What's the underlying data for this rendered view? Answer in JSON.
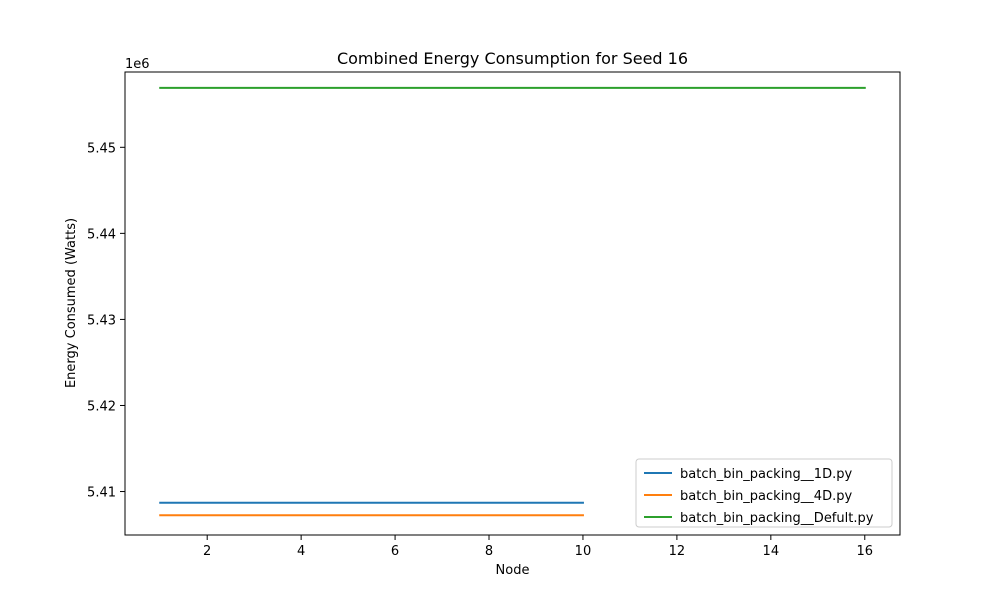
{
  "chart_data": {
    "type": "line",
    "title": "Combined Energy Consumption for Seed 16",
    "xlabel": "Node",
    "ylabel": "Energy Consumed (Watts)",
    "y_offset_label": "1e6",
    "y_scale": 1000000,
    "xlim": [
      0.25,
      16.75
    ],
    "ylim": [
      5404950,
      5458750
    ],
    "xticks": [
      2,
      4,
      6,
      8,
      10,
      12,
      14,
      16
    ],
    "yticks": [
      5410000,
      5420000,
      5430000,
      5440000,
      5450000
    ],
    "ytick_labels": [
      "5.41",
      "5.42",
      "5.43",
      "5.44",
      "5.45"
    ],
    "grid": false,
    "legend_position": "lower right",
    "series": [
      {
        "name": "batch_bin_packing__1D.py",
        "color": "#1f77b4",
        "x": [
          1,
          2,
          3,
          4,
          5,
          6,
          7,
          8,
          9,
          10
        ],
        "y": [
          5408700,
          5408700,
          5408700,
          5408700,
          5408700,
          5408700,
          5408700,
          5408700,
          5408700,
          5408700
        ]
      },
      {
        "name": "batch_bin_packing__4D.py",
        "color": "#ff7f0e",
        "x": [
          1,
          2,
          3,
          4,
          5,
          6,
          7,
          8,
          9,
          10
        ],
        "y": [
          5407250,
          5407250,
          5407250,
          5407250,
          5407250,
          5407250,
          5407250,
          5407250,
          5407250,
          5407250
        ]
      },
      {
        "name": "batch_bin_packing__Defult.py",
        "color": "#2ca02c",
        "x": [
          1,
          2,
          3,
          4,
          5,
          6,
          7,
          8,
          9,
          10,
          11,
          12,
          13,
          14,
          15,
          16
        ],
        "y": [
          5456900,
          5456900,
          5456900,
          5456900,
          5456900,
          5456900,
          5456900,
          5456900,
          5456900,
          5456900,
          5456900,
          5456900,
          5456900,
          5456900,
          5456900,
          5456900
        ]
      }
    ]
  }
}
